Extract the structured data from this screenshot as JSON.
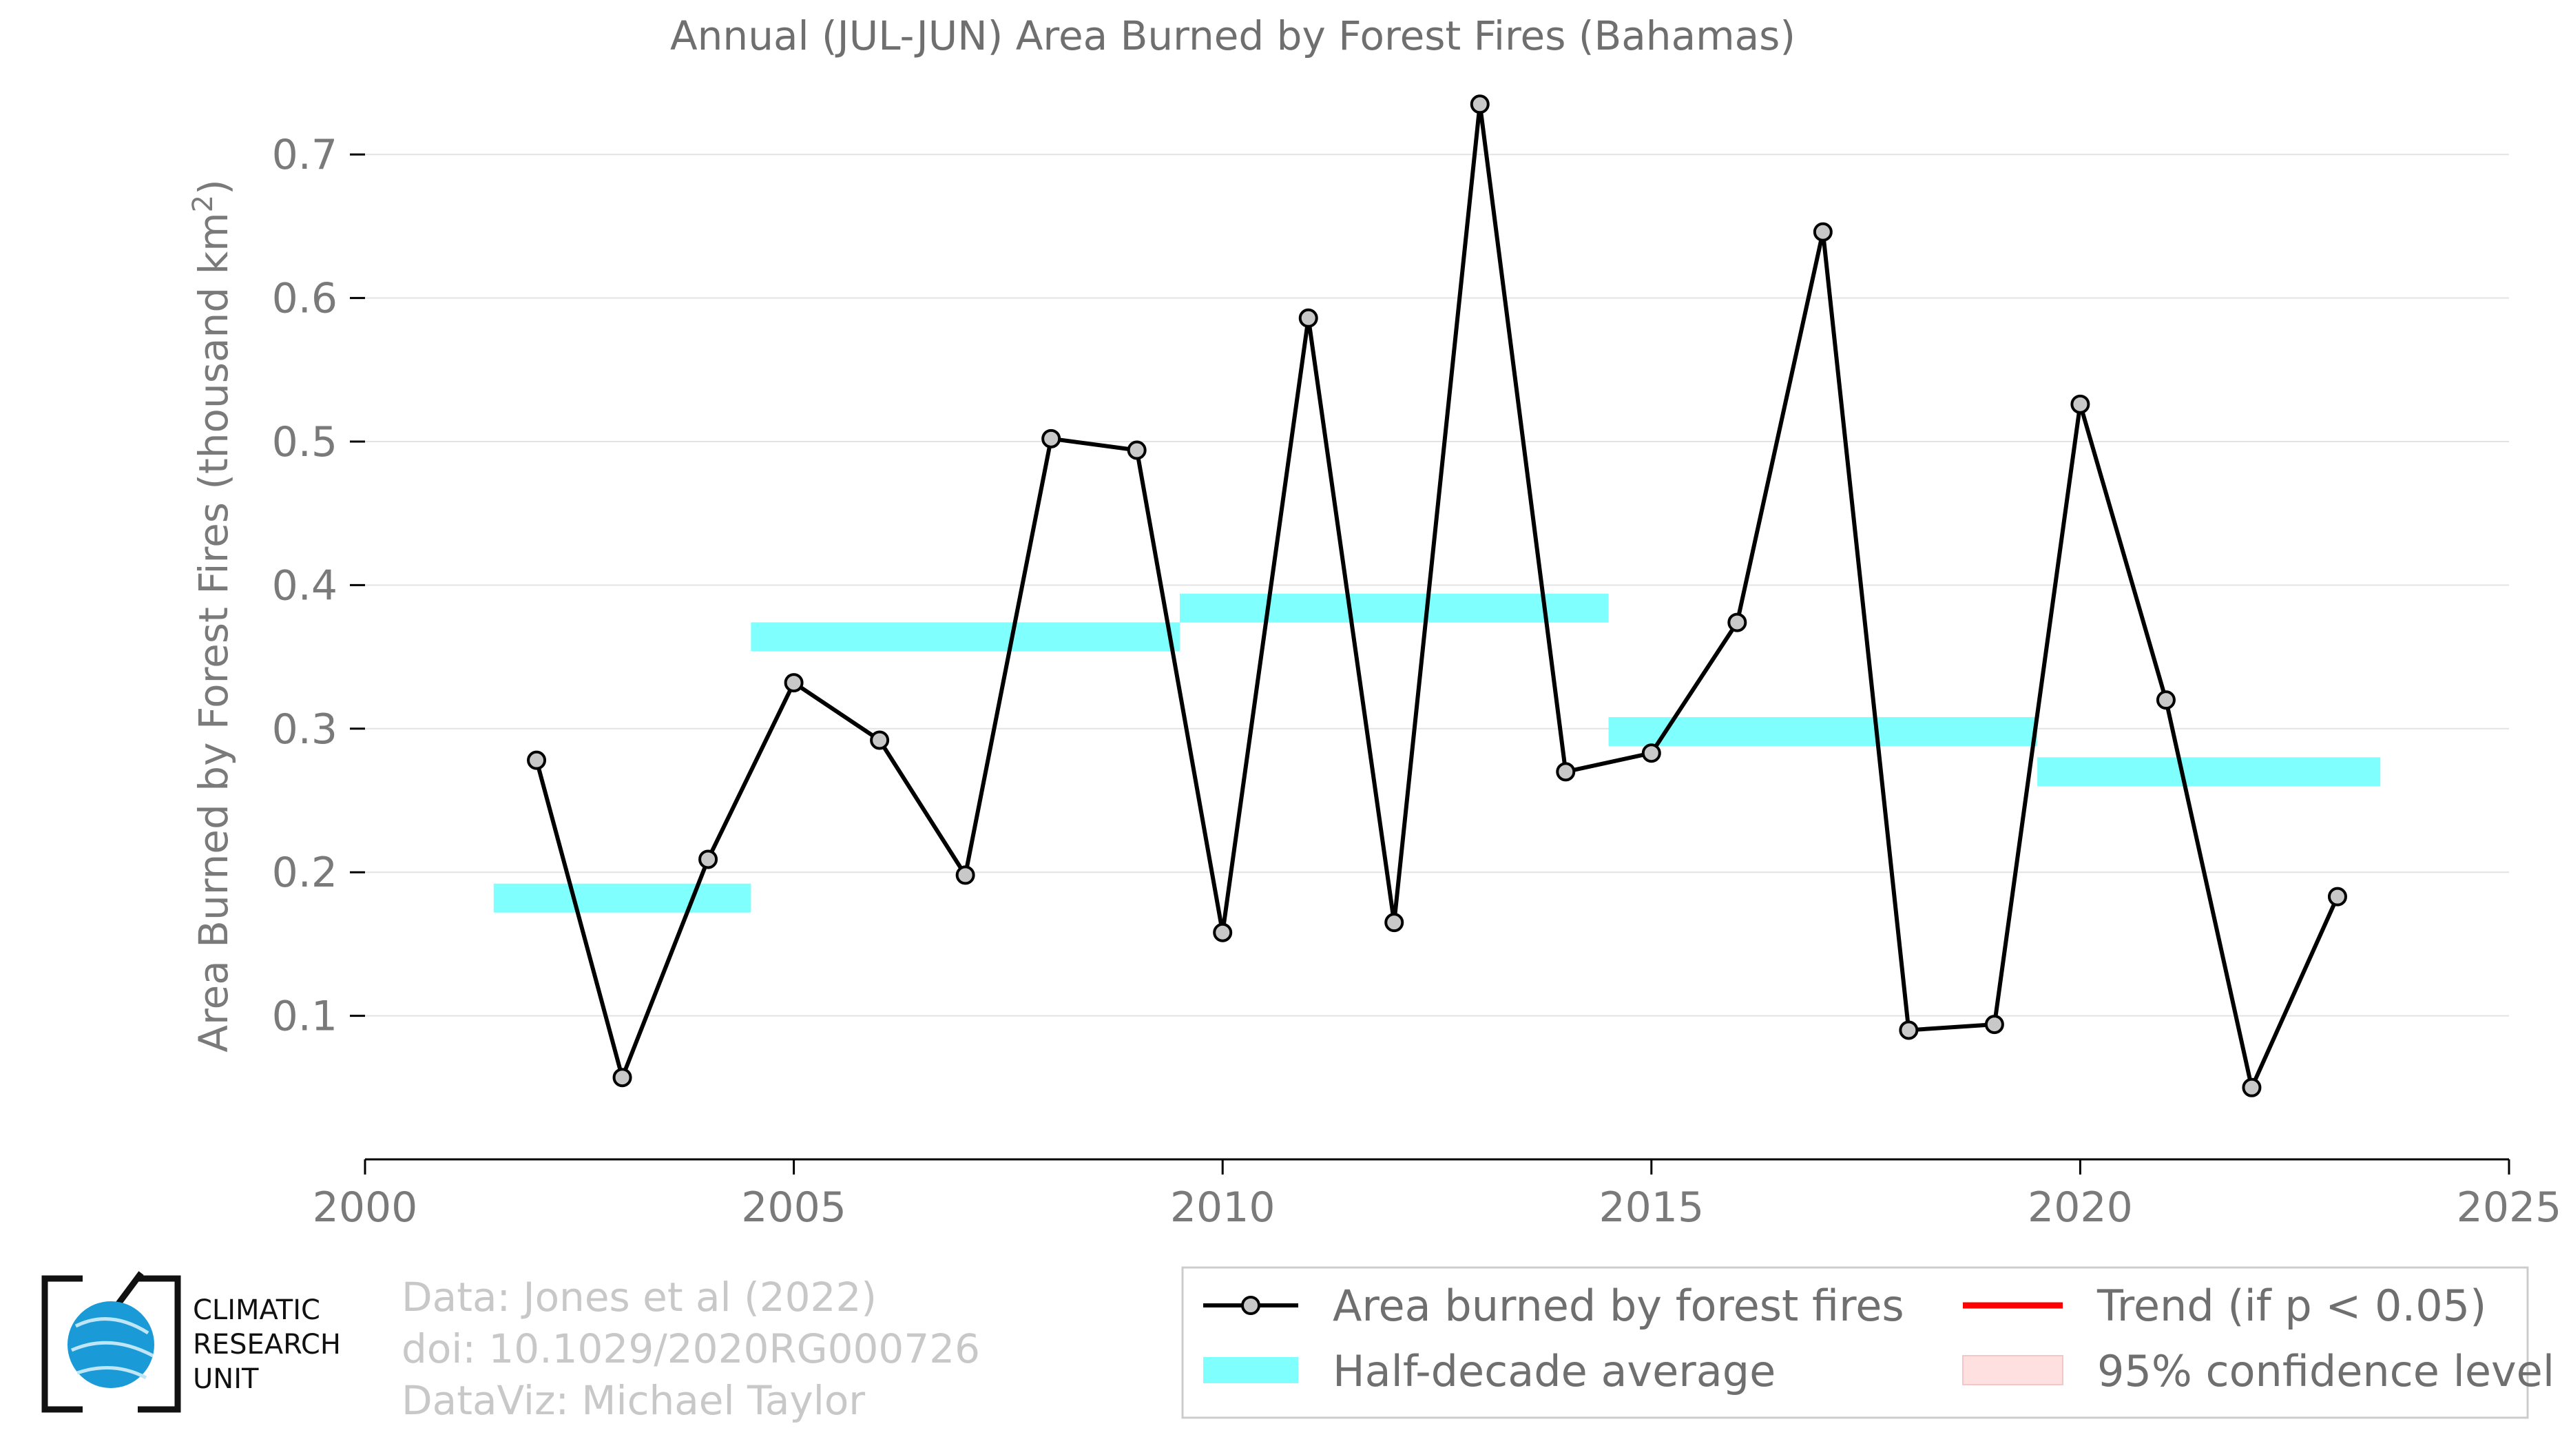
{
  "chart_data": {
    "type": "line",
    "title": "Annual (JUL-JUN) Area Burned by Forest Fires (Bahamas)",
    "ylabel_main": "Area Burned by Forest Fires (thousand km",
    "ylabel_sup": "2",
    "ylabel_end": ")",
    "xlabel": "",
    "xlim": [
      2000,
      2025
    ],
    "ylim": [
      0,
      0.75
    ],
    "x_ticks": [
      2000,
      2005,
      2010,
      2015,
      2020,
      2025
    ],
    "x_tick_labels": [
      "2000",
      "2005",
      "2010",
      "2015",
      "2020",
      "2025"
    ],
    "y_ticks": [
      0.1,
      0.2,
      0.3,
      0.4,
      0.5,
      0.6,
      0.7
    ],
    "y_tick_labels": [
      "0.1",
      "0.2",
      "0.3",
      "0.4",
      "0.5",
      "0.6",
      "0.7"
    ],
    "grid": "horizontal",
    "series": [
      {
        "name": "Area burned by forest fires",
        "color": "#000000",
        "marker_fill": "#c8c8c8",
        "x": [
          2002,
          2003,
          2004,
          2005,
          2006,
          2007,
          2008,
          2009,
          2010,
          2011,
          2012,
          2013,
          2014,
          2015,
          2016,
          2017,
          2018,
          2019,
          2020,
          2021,
          2022,
          2023
        ],
        "y": [
          0.278,
          0.057,
          0.209,
          0.332,
          0.292,
          0.198,
          0.502,
          0.494,
          0.158,
          0.586,
          0.165,
          0.735,
          0.27,
          0.283,
          0.374,
          0.646,
          0.09,
          0.094,
          0.526,
          0.32,
          0.05,
          0.183
        ]
      }
    ],
    "half_decade_average": {
      "name": "Half-decade average",
      "color": "#80ffff",
      "segments": [
        {
          "x_start": 2001.5,
          "x_end": 2004.5,
          "value": 0.182
        },
        {
          "x_start": 2004.5,
          "x_end": 2009.5,
          "value": 0.364
        },
        {
          "x_start": 2009.5,
          "x_end": 2014.5,
          "value": 0.384
        },
        {
          "x_start": 2014.5,
          "x_end": 2019.5,
          "value": 0.298
        },
        {
          "x_start": 2019.5,
          "x_end": 2023.5,
          "value": 0.27
        }
      ]
    },
    "legend": {
      "placement": "bottom-right",
      "items": [
        {
          "label": "Area burned by forest fires",
          "style": "line-marker",
          "color": "#000000"
        },
        {
          "label": "Trend (if p < 0.05)",
          "style": "line",
          "color": "#ff0000"
        },
        {
          "label": "Half-decade average",
          "style": "band",
          "color": "#80ffff"
        },
        {
          "label": "95% confidence level",
          "style": "band",
          "color": "#ffe0e0"
        }
      ]
    },
    "credits": [
      "Data: Jones et al (2022)",
      "doi: 10.1029/2020RG000726",
      "DataViz: Michael Taylor"
    ],
    "logo": {
      "lines": [
        "CLIMATIC",
        "RESEARCH",
        "UNIT"
      ],
      "globe_color": "#1a9ad6"
    }
  }
}
